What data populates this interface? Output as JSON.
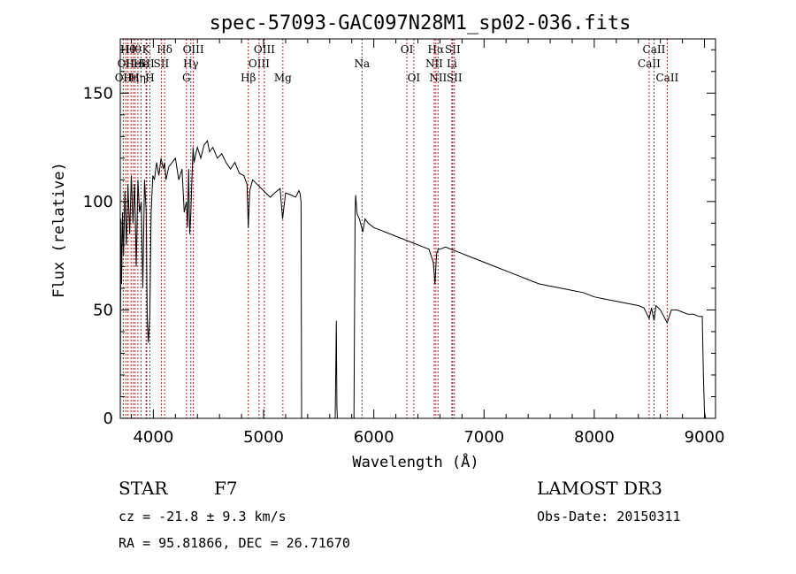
{
  "chart_data": {
    "type": "line",
    "title": "spec-57093-GAC097N28M1_sp02-036.fits",
    "xlabel": "Wavelength (Å)",
    "ylabel": "Flux (relative)",
    "xlim": [
      3700,
      9100
    ],
    "ylim": [
      0,
      175
    ],
    "xticks": [
      4000,
      5000,
      6000,
      7000,
      8000,
      9000
    ],
    "yticks": [
      0,
      50,
      100,
      150
    ],
    "series": [
      {
        "name": "spectrum",
        "x": [
          3700,
          3705,
          3712,
          3720,
          3730,
          3742,
          3755,
          3770,
          3785,
          3800,
          3815,
          3830,
          3845,
          3860,
          3875,
          3890,
          3905,
          3920,
          3935,
          3945,
          3955,
          3968,
          3980,
          3995,
          4010,
          4030,
          4050,
          4070,
          4090,
          4102,
          4115,
          4140,
          4170,
          4200,
          4230,
          4260,
          4280,
          4300,
          4310,
          4320,
          4330,
          4340,
          4350,
          4360,
          4370,
          4385,
          4400,
          4430,
          4460,
          4490,
          4510,
          4540,
          4580,
          4620,
          4660,
          4700,
          4740,
          4780,
          4820,
          4850,
          4861,
          4875,
          4900,
          4940,
          4980,
          5020,
          5060,
          5100,
          5150,
          5172,
          5200,
          5250,
          5290,
          5310,
          5320,
          5330,
          5340,
          5345,
          5360,
          5400,
          5500,
          5600,
          5650,
          5660,
          5665,
          5670,
          5680,
          5700,
          5800,
          5820,
          5830,
          5835,
          5840,
          5845,
          5850,
          5870,
          5890,
          5900,
          5920,
          5950,
          6000,
          6050,
          6100,
          6150,
          6200,
          6250,
          6300,
          6350,
          6400,
          6450,
          6500,
          6540,
          6555,
          6563,
          6570,
          6585,
          6600,
          6650,
          6700,
          6750,
          6800,
          6850,
          6900,
          6950,
          7000,
          7100,
          7200,
          7300,
          7400,
          7500,
          7600,
          7700,
          7800,
          7900,
          8000,
          8100,
          8200,
          8300,
          8400,
          8450,
          8498,
          8520,
          8542,
          8560,
          8600,
          8662,
          8700,
          8750,
          8800,
          8850,
          8900,
          8950,
          8980,
          8990,
          9000,
          9010
        ],
        "values": [
          0,
          92,
          62,
          95,
          75,
          105,
          80,
          108,
          85,
          112,
          90,
          108,
          70,
          110,
          95,
          100,
          60,
          110,
          95,
          45,
          35,
          48,
          95,
          112,
          110,
          118,
          112,
          120,
          115,
          118,
          110,
          116,
          118,
          120,
          110,
          115,
          95,
          100,
          88,
          115,
          85,
          95,
          110,
          125,
          118,
          122,
          125,
          120,
          126,
          128,
          123,
          125,
          120,
          122,
          118,
          115,
          118,
          113,
          112,
          108,
          88,
          105,
          110,
          108,
          106,
          104,
          102,
          104,
          106,
          92,
          104,
          103,
          102,
          104,
          105,
          104,
          100,
          0,
          0,
          0,
          0,
          0,
          0,
          45,
          5,
          0,
          0,
          0,
          0,
          0,
          95,
          103,
          100,
          96,
          94,
          92,
          88,
          86,
          92,
          90,
          88,
          87,
          86,
          85,
          84,
          83,
          82,
          81,
          80,
          79,
          78,
          72,
          62,
          70,
          76,
          78,
          78,
          79,
          78,
          77,
          76,
          75,
          74,
          73,
          72,
          70,
          68,
          66,
          64,
          62,
          61,
          60,
          59,
          58,
          56,
          55,
          54,
          53,
          52,
          51,
          46,
          51,
          45,
          52,
          50,
          44,
          50,
          50,
          49,
          48,
          48,
          47,
          47,
          20,
          3,
          0
        ]
      }
    ],
    "line_labels": [
      {
        "w": 3727,
        "row": 2,
        "text": "OII"
      },
      {
        "w": 3750,
        "row": 1,
        "text": "OII"
      },
      {
        "w": 3770,
        "row": 0,
        "text": "Hθ"
      },
      {
        "w": 3798,
        "row": 2,
        "text": "Hη"
      },
      {
        "w": 3820,
        "row": 0,
        "text": "Hθ"
      },
      {
        "w": 3835,
        "row": 1,
        "text": "HeI"
      },
      {
        "w": 3860,
        "row": 2,
        "text": "Hη"
      },
      {
        "w": 3889,
        "row": 1,
        "text": "He"
      },
      {
        "w": 3934,
        "row": 0,
        "text": "K"
      },
      {
        "w": 3940,
        "row": 1,
        "text": "SII"
      },
      {
        "w": 3969,
        "row": 2,
        "text": "H"
      },
      {
        "w": 4102,
        "row": 0,
        "text": "Hδ"
      },
      {
        "w": 4072,
        "row": 1,
        "text": "SII"
      },
      {
        "w": 4300,
        "row": 2,
        "text": "G"
      },
      {
        "w": 4340,
        "row": 1,
        "text": "Hγ"
      },
      {
        "w": 4363,
        "row": 0,
        "text": "OIII"
      },
      {
        "w": 4861,
        "row": 2,
        "text": "Hβ"
      },
      {
        "w": 4959,
        "row": 1,
        "text": "OIII"
      },
      {
        "w": 5007,
        "row": 0,
        "text": "OIII"
      },
      {
        "w": 5175,
        "row": 2,
        "text": "Mg"
      },
      {
        "w": 5893,
        "row": 1,
        "text": "Na"
      },
      {
        "w": 6300,
        "row": 0,
        "text": "OI"
      },
      {
        "w": 6363,
        "row": 2,
        "text": "OI"
      },
      {
        "w": 6548,
        "row": 1,
        "text": "NII"
      },
      {
        "w": 6563,
        "row": 0,
        "text": "Hα"
      },
      {
        "w": 6583,
        "row": 2,
        "text": "NII"
      },
      {
        "w": 6708,
        "row": 1,
        "text": "Li"
      },
      {
        "w": 6716,
        "row": 0,
        "text": "SII"
      },
      {
        "w": 6731,
        "row": 2,
        "text": "SII"
      },
      {
        "w": 8498,
        "row": 1,
        "text": "CaII"
      },
      {
        "w": 8542,
        "row": 0,
        "text": "CaII"
      },
      {
        "w": 8662,
        "row": 2,
        "text": "CaII"
      }
    ]
  },
  "footer": {
    "object_type": "STAR",
    "subclass": "F7",
    "cz": "cz = -21.8 ± 9.3 km/s",
    "coords": "RA =  95.81866, DEC =  26.71670",
    "survey": "LAMOST DR3",
    "obs_date": "Obs-Date: 20150311"
  }
}
